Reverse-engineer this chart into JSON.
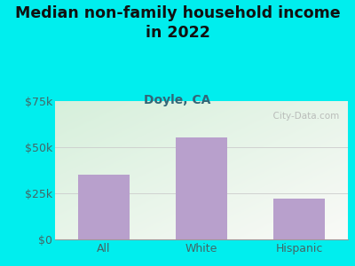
{
  "title": "Median non-family household income\nin 2022",
  "subtitle": "Doyle, CA",
  "categories": [
    "All",
    "White",
    "Hispanic"
  ],
  "values": [
    35000,
    55500,
    22000
  ],
  "bar_color": "#b8a0cc",
  "ylim": [
    0,
    75000
  ],
  "yticks": [
    0,
    25000,
    50000,
    75000
  ],
  "ytick_labels": [
    "$0",
    "$25k",
    "$50k",
    "$75k"
  ],
  "title_fontsize": 12.5,
  "subtitle_fontsize": 10,
  "tick_fontsize": 9,
  "xtick_fontsize": 9,
  "bg_color": "#00EEEE",
  "grid_color": "#cccccc",
  "subtitle_color": "#336677",
  "title_color": "#111111",
  "tick_color": "#446666",
  "watermark": "  City-Data.com"
}
